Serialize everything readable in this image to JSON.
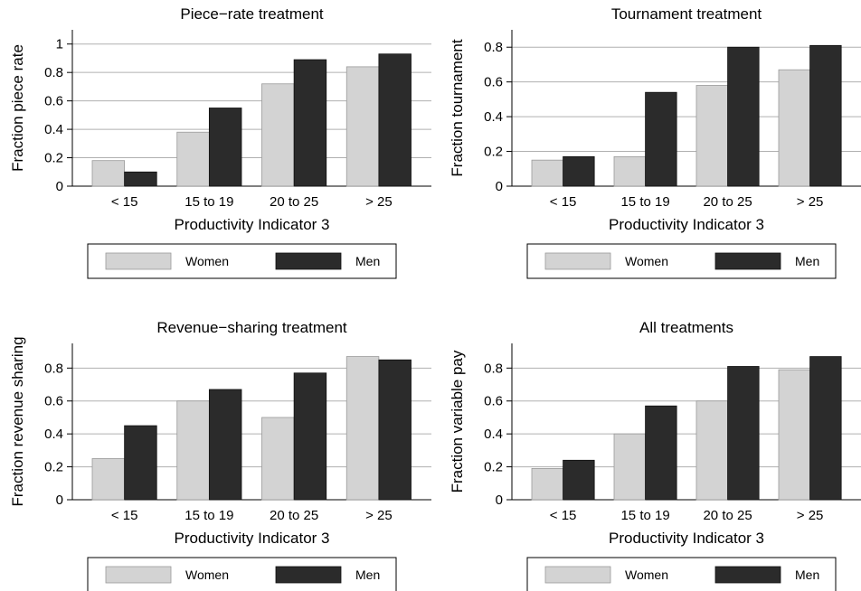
{
  "legend_labels": [
    "Women",
    "Men"
  ],
  "colors": {
    "women": "#d3d3d3",
    "men": "#2b2b2b",
    "grid": "#b0b0b0"
  },
  "chart_data": [
    {
      "type": "bar",
      "title": "Piece−rate treatment",
      "xlabel": "Productivity Indicator 3",
      "ylabel": "Fraction piece rate",
      "categories": [
        "< 15",
        "15 to 19",
        "20 to 25",
        "> 25"
      ],
      "series": [
        {
          "name": "Women",
          "values": [
            0.18,
            0.38,
            0.72,
            0.84
          ]
        },
        {
          "name": "Men",
          "values": [
            0.1,
            0.55,
            0.89,
            0.93
          ]
        }
      ],
      "ylim": [
        0,
        1.1
      ],
      "yticks": [
        0,
        0.2,
        0.4,
        0.6,
        0.8,
        1
      ],
      "ytick_labels": [
        "0",
        "0.2",
        "0.4",
        "0.6",
        "0.8",
        "1"
      ],
      "grid": true,
      "legend": "bottom"
    },
    {
      "type": "bar",
      "title": "Tournament treatment",
      "xlabel": "Productivity Indicator 3",
      "ylabel": "Fraction tournament",
      "categories": [
        "< 15",
        "15 to 19",
        "20 to 25",
        "> 25"
      ],
      "series": [
        {
          "name": "Women",
          "values": [
            0.15,
            0.17,
            0.58,
            0.67
          ]
        },
        {
          "name": "Men",
          "values": [
            0.17,
            0.54,
            0.8,
            0.81
          ]
        }
      ],
      "ylim": [
        0,
        0.9
      ],
      "yticks": [
        0,
        0.2,
        0.4,
        0.6,
        0.8
      ],
      "ytick_labels": [
        "0",
        "0.2",
        "0.4",
        "0.6",
        "0.8"
      ],
      "grid": true,
      "legend": "bottom"
    },
    {
      "type": "bar",
      "title": "Revenue−sharing treatment",
      "xlabel": "Productivity Indicator 3",
      "ylabel": "Fraction revenue sharing",
      "categories": [
        "< 15",
        "15 to 19",
        "20 to 25",
        "> 25"
      ],
      "series": [
        {
          "name": "Women",
          "values": [
            0.25,
            0.6,
            0.5,
            0.87
          ]
        },
        {
          "name": "Men",
          "values": [
            0.45,
            0.67,
            0.77,
            0.85
          ]
        }
      ],
      "ylim": [
        0,
        0.95
      ],
      "yticks": [
        0,
        0.2,
        0.4,
        0.6,
        0.8
      ],
      "ytick_labels": [
        "0",
        "0.2",
        "0.4",
        "0.6",
        "0.8"
      ],
      "grid": true,
      "legend": "bottom"
    },
    {
      "type": "bar",
      "title": "All treatments",
      "xlabel": "Productivity Indicator 3",
      "ylabel": "Fraction variable pay",
      "categories": [
        "< 15",
        "15 to 19",
        "20 to 25",
        "> 25"
      ],
      "series": [
        {
          "name": "Women",
          "values": [
            0.19,
            0.4,
            0.6,
            0.79
          ]
        },
        {
          "name": "Men",
          "values": [
            0.24,
            0.57,
            0.81,
            0.87
          ]
        }
      ],
      "ylim": [
        0,
        0.95
      ],
      "yticks": [
        0,
        0.2,
        0.4,
        0.6,
        0.8
      ],
      "ytick_labels": [
        "0",
        "0.2",
        "0.4",
        "0.6",
        "0.8"
      ],
      "grid": true,
      "legend": "bottom"
    }
  ]
}
